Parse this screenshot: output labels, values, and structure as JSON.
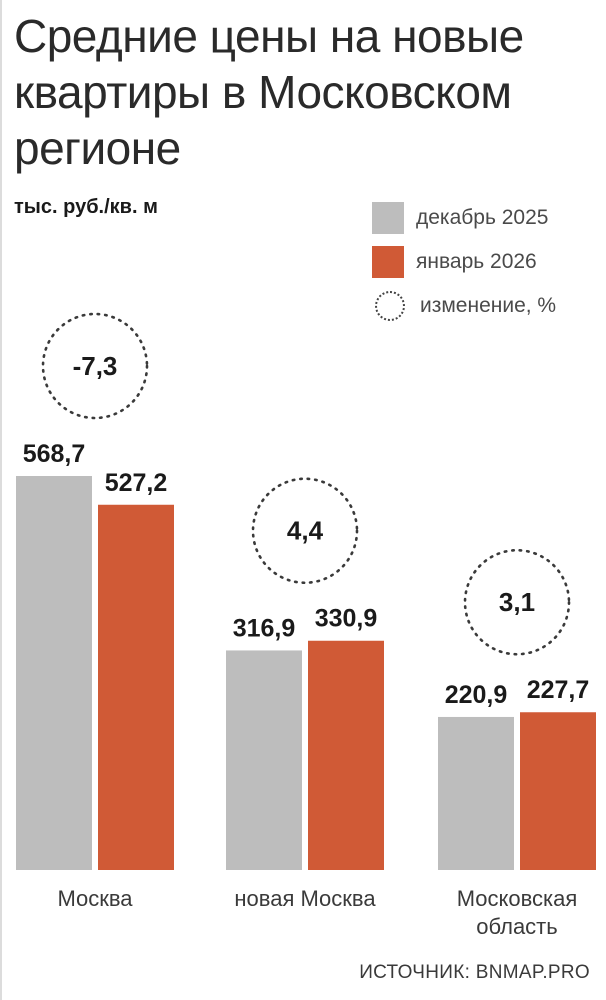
{
  "title": "Средние цены на новые квартиры в Московском регионе",
  "unit": "тыс. руб./кв. м",
  "source": "ИСТОЧНИК: BNMAP.PRO",
  "legend": {
    "dec": "декабрь 2025",
    "jan": "январь 2026",
    "change": "изменение, %"
  },
  "colors": {
    "dec": "#bdbdbd",
    "jan": "#d05a36"
  },
  "chart_data": {
    "type": "bar",
    "title": "Средние цены на новые квартиры в Московском регионе",
    "ylabel": "тыс. руб./кв. м",
    "categories": [
      "Москва",
      "новая Москва",
      "Московская область"
    ],
    "category_lines": [
      [
        "Москва"
      ],
      [
        "новая Москва"
      ],
      [
        "Московская",
        "область"
      ]
    ],
    "series": [
      {
        "name": "декабрь 2025",
        "values": [
          568.7,
          316.9,
          220.9
        ],
        "labels": [
          "568,7",
          "316,9",
          "220,9"
        ]
      },
      {
        "name": "январь 2026",
        "values": [
          527.2,
          330.9,
          227.7
        ],
        "labels": [
          "527,2",
          "330,9",
          "227,7"
        ]
      }
    ],
    "change_percent": [
      -7.3,
      4.4,
      3.1
    ],
    "change_labels": [
      "-7,3",
      "4,4",
      "3,1"
    ],
    "grid": false,
    "legend_position": "top-right"
  }
}
